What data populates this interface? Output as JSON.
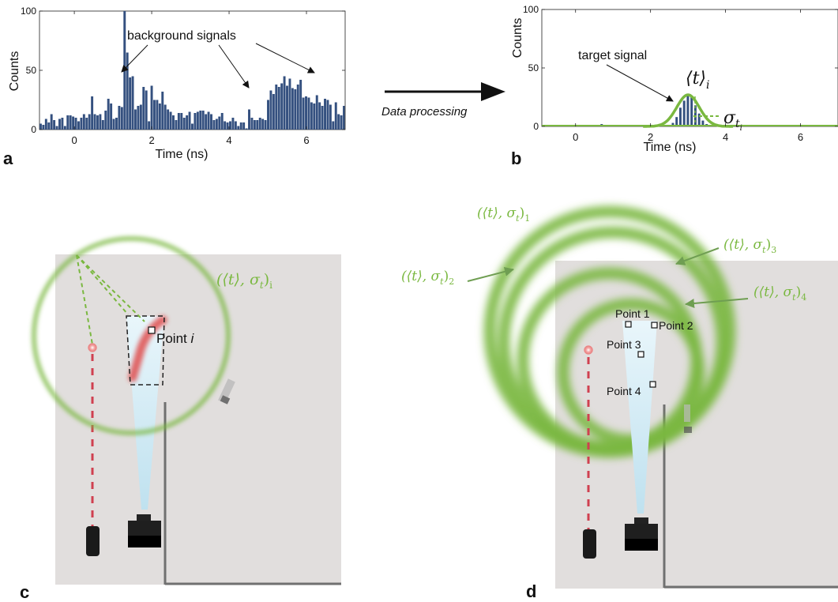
{
  "panel_labels": {
    "a": "a",
    "b": "b",
    "c": "c",
    "d": "d"
  },
  "colors": {
    "bar": "#34507f",
    "green": "#7ab840",
    "green_dark": "#5e9a32",
    "red": "#e05050",
    "floor": "#e1dedd",
    "beam": "#cfe8f4"
  },
  "panel_a": {
    "annotation": "background signals",
    "xlabel": "Time (ns)",
    "ylabel": "Counts"
  },
  "panel_b": {
    "annotation": "target signal",
    "mean_label": "⟨t⟩",
    "mean_sub": "i",
    "sigma_label": "σ",
    "sigma_sub": "t",
    "sigma_subsub": "i",
    "xlabel": "Time (ns)",
    "ylabel": "Counts"
  },
  "arrow_caption": "Data processing",
  "panel_c": {
    "circle_label": "(⟨t⟩, σ",
    "circle_label_sub": "t",
    "circle_label_close": ")",
    "circle_label_index": "i",
    "point_label": "Point ",
    "point_label_italic": "i"
  },
  "panel_d": {
    "circle_labels": [
      {
        "main": "(⟨t⟩, σ",
        "sub": "t",
        "close": ")",
        "index": "1"
      },
      {
        "main": "(⟨t⟩, σ",
        "sub": "t",
        "close": ")",
        "index": "2"
      },
      {
        "main": "(⟨t⟩, σ",
        "sub": "t",
        "close": ")",
        "index": "3"
      },
      {
        "main": "(⟨t⟩, σ",
        "sub": "t",
        "close": ")",
        "index": "4"
      }
    ],
    "points": [
      "Point 1",
      "Point 2",
      "Point 3",
      "Point 4"
    ]
  },
  "chart_data": [
    {
      "type": "bar",
      "panel": "a",
      "xlabel": "Time (ns)",
      "ylabel": "Counts",
      "xlim": [
        -0.9,
        7.0
      ],
      "ylim": [
        0,
        100
      ],
      "xticks": [
        0,
        2,
        4,
        6
      ],
      "yticks": [
        0,
        50,
        100
      ],
      "bin_width_ns": 0.07,
      "x_start": -0.9,
      "values": [
        5,
        4,
        9,
        6,
        13,
        8,
        3,
        9,
        10,
        3,
        12,
        12,
        11,
        10,
        7,
        10,
        13,
        10,
        13,
        28,
        13,
        12,
        13,
        8,
        16,
        26,
        22,
        9,
        10,
        20,
        19,
        100,
        65,
        44,
        45,
        17,
        20,
        21,
        36,
        33,
        7,
        37,
        25,
        25,
        22,
        32,
        21,
        17,
        15,
        12,
        8,
        14,
        14,
        10,
        12,
        15,
        5,
        14,
        15,
        16,
        16,
        13,
        15,
        13,
        8,
        9,
        11,
        14,
        7,
        6,
        7,
        10,
        7,
        3,
        6,
        6,
        1,
        17,
        10,
        8,
        8,
        10,
        9,
        8,
        25,
        33,
        30,
        38,
        36,
        39,
        45,
        37,
        43,
        35,
        34,
        38,
        42,
        27,
        28,
        27,
        23,
        22,
        29,
        23,
        20,
        26,
        25,
        21,
        7,
        23,
        13,
        12,
        20,
        18,
        16,
        9,
        15,
        20,
        12,
        3,
        15,
        6,
        9,
        16,
        11,
        24,
        18,
        23,
        19,
        23,
        22,
        15,
        20,
        15,
        18,
        20,
        11,
        10,
        13,
        10,
        15,
        9,
        14,
        14,
        13,
        16,
        18,
        16,
        11,
        9,
        7,
        12,
        14,
        12,
        12,
        9,
        14,
        15,
        15,
        9,
        6,
        9,
        17,
        20,
        26,
        37,
        45,
        50,
        49,
        48,
        52,
        51,
        52,
        52
      ]
    },
    {
      "type": "bar",
      "panel": "b",
      "xlabel": "Time (ns)",
      "ylabel": "Counts",
      "xlim": [
        -0.9,
        7.0
      ],
      "ylim": [
        0,
        100
      ],
      "xticks": [
        0,
        2,
        4,
        6
      ],
      "yticks": [
        0,
        50,
        100
      ],
      "bins": [
        {
          "x": 0.0,
          "y": 1
        },
        {
          "x": 0.7,
          "y": 2
        },
        {
          "x": 1.5,
          "y": 1
        },
        {
          "x": 2.6,
          "y": 3
        },
        {
          "x": 2.7,
          "y": 8
        },
        {
          "x": 2.8,
          "y": 16
        },
        {
          "x": 2.9,
          "y": 22
        },
        {
          "x": 3.0,
          "y": 27
        },
        {
          "x": 3.1,
          "y": 25
        },
        {
          "x": 3.2,
          "y": 18
        },
        {
          "x": 3.3,
          "y": 11
        },
        {
          "x": 3.4,
          "y": 5
        },
        {
          "x": 3.5,
          "y": 2
        },
        {
          "x": 5.1,
          "y": 1
        },
        {
          "x": 6.4,
          "y": 1
        }
      ],
      "fit": {
        "type": "gaussian",
        "mean": 3.0,
        "sigma": 0.3,
        "amplitude": 27
      }
    }
  ]
}
